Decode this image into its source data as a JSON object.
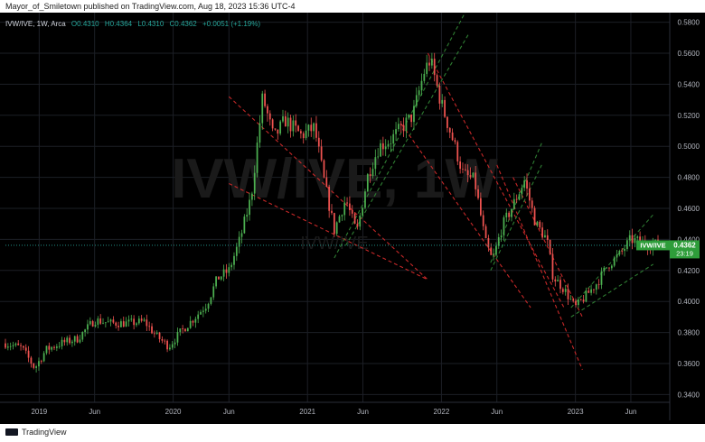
{
  "header": {
    "attribution": "Mayor_of_Smiletown published on TradingView.com, Aug 18, 2023 15:36 UTC-4"
  },
  "footer": {
    "logo_text": "TradingView"
  },
  "colors": {
    "background": "#000000",
    "up": "#26a69a",
    "down": "#ef5350",
    "up_bright": "#4caf50",
    "channel_green": "#2e7d32",
    "channel_red": "#c62828",
    "price_label_bg": "#2e9d3a",
    "axis_text": "#b2b5be"
  },
  "chart_data": {
    "type": "candlestick",
    "symbol_line": {
      "symbol": "IVW/IVE, 1W, Arca",
      "open": "O0.4310",
      "high": "H0.4364",
      "low": "L0.4310",
      "close": "C0.4362",
      "change": "+0.0051 (+1.19%)"
    },
    "watermark": {
      "main": "IVW/IVE, 1W",
      "sub": "IVW/IVE"
    },
    "price_label": {
      "symbol": "IVW/IVE",
      "value": "0.4362",
      "countdown": "23:19"
    },
    "last_price": 0.4362,
    "y_ticks": [
      "0.3400",
      "0.3600",
      "0.3800",
      "0.4000",
      "0.4200",
      "0.4400",
      "0.4600",
      "0.4800",
      "0.5000",
      "0.5200",
      "0.5400",
      "0.5600",
      "0.5800"
    ],
    "ylim": [
      0.335,
      0.585
    ],
    "x_ticks": [
      "2019",
      "Jun",
      "2020",
      "Jun",
      "2021",
      "Jun",
      "2022",
      "Jun",
      "2023",
      "Jun"
    ],
    "x_tick_dates": [
      "2019-01-01",
      "2019-06-01",
      "2020-01-01",
      "2020-06-01",
      "2021-01-01",
      "2021-06-01",
      "2022-01-01",
      "2022-06-01",
      "2023-01-01",
      "2023-06-01"
    ],
    "xlim": [
      "2018-10-01",
      "2023-09-15"
    ],
    "close_path": [
      [
        "2018-10-01",
        0.373
      ],
      [
        "2018-11-15",
        0.37
      ],
      [
        "2018-12-20",
        0.357
      ],
      [
        "2019-01-20",
        0.369
      ],
      [
        "2019-03-01",
        0.373
      ],
      [
        "2019-04-15",
        0.376
      ],
      [
        "2019-06-01",
        0.388
      ],
      [
        "2019-07-15",
        0.386
      ],
      [
        "2019-09-01",
        0.386
      ],
      [
        "2019-10-15",
        0.387
      ],
      [
        "2019-11-15",
        0.378
      ],
      [
        "2019-12-20",
        0.371
      ],
      [
        "2020-01-20",
        0.38
      ],
      [
        "2020-03-01",
        0.39
      ],
      [
        "2020-04-01",
        0.398
      ],
      [
        "2020-05-01",
        0.415
      ],
      [
        "2020-06-01",
        0.42
      ],
      [
        "2020-07-01",
        0.44
      ],
      [
        "2020-08-01",
        0.468
      ],
      [
        "2020-09-01",
        0.532
      ],
      [
        "2020-10-01",
        0.505
      ],
      [
        "2020-11-01",
        0.517
      ],
      [
        "2020-12-15",
        0.507
      ],
      [
        "2021-01-20",
        0.512
      ],
      [
        "2021-02-15",
        0.478
      ],
      [
        "2021-03-15",
        0.446
      ],
      [
        "2021-04-15",
        0.466
      ],
      [
        "2021-05-15",
        0.444
      ],
      [
        "2021-06-15",
        0.482
      ],
      [
        "2021-07-15",
        0.5
      ],
      [
        "2021-08-15",
        0.504
      ],
      [
        "2021-09-15",
        0.512
      ],
      [
        "2021-10-15",
        0.52
      ],
      [
        "2021-11-15",
        0.548
      ],
      [
        "2021-12-01",
        0.556
      ],
      [
        "2021-12-31",
        0.528
      ],
      [
        "2022-01-31",
        0.505
      ],
      [
        "2022-03-01",
        0.482
      ],
      [
        "2022-04-01",
        0.478
      ],
      [
        "2022-05-01",
        0.438
      ],
      [
        "2022-05-20",
        0.426
      ],
      [
        "2022-06-15",
        0.448
      ],
      [
        "2022-07-15",
        0.462
      ],
      [
        "2022-08-15",
        0.478
      ],
      [
        "2022-09-15",
        0.45
      ],
      [
        "2022-10-15",
        0.44
      ],
      [
        "2022-11-01",
        0.416
      ],
      [
        "2022-12-01",
        0.408
      ],
      [
        "2022-12-31",
        0.396
      ],
      [
        "2023-01-31",
        0.404
      ],
      [
        "2023-03-01",
        0.412
      ],
      [
        "2023-04-01",
        0.424
      ],
      [
        "2023-05-01",
        0.43
      ],
      [
        "2023-06-01",
        0.44
      ],
      [
        "2023-07-01",
        0.438
      ],
      [
        "2023-08-18",
        0.4362
      ]
    ],
    "trend_lines": [
      {
        "style": "red",
        "from": [
          "2020-06-01",
          0.532
        ],
        "to": [
          "2021-11-25",
          0.414
        ]
      },
      {
        "style": "red",
        "from": [
          "2020-06-01",
          0.476
        ],
        "to": [
          "2021-11-25",
          0.414
        ]
      },
      {
        "style": "green",
        "from": [
          "2021-03-15",
          0.428
        ],
        "to": [
          "2022-03-15",
          0.59
        ]
      },
      {
        "style": "green",
        "from": [
          "2021-04-15",
          0.436
        ],
        "to": [
          "2022-03-15",
          0.572
        ]
      },
      {
        "style": "red",
        "from": [
          "2021-11-25",
          0.56
        ],
        "to": [
          "2022-12-01",
          0.396
        ]
      },
      {
        "style": "red",
        "from": [
          "2021-09-15",
          0.514
        ],
        "to": [
          "2022-09-01",
          0.396
        ]
      },
      {
        "style": "red",
        "from": [
          "2022-06-01",
          0.488
        ],
        "to": [
          "2023-01-20",
          0.356
        ]
      },
      {
        "style": "red",
        "from": [
          "2022-07-15",
          0.48
        ],
        "to": [
          "2023-01-20",
          0.39
        ]
      },
      {
        "style": "green",
        "from": [
          "2022-05-15",
          0.425
        ],
        "to": [
          "2022-10-01",
          0.502
        ]
      },
      {
        "style": "green",
        "from": [
          "2022-05-15",
          0.42
        ],
        "to": [
          "2022-10-01",
          0.488
        ]
      },
      {
        "style": "green",
        "from": [
          "2022-12-20",
          0.396
        ],
        "to": [
          "2023-08-01",
          0.456
        ]
      },
      {
        "style": "green",
        "from": [
          "2022-12-20",
          0.39
        ],
        "to": [
          "2023-08-01",
          0.424
        ]
      }
    ]
  }
}
